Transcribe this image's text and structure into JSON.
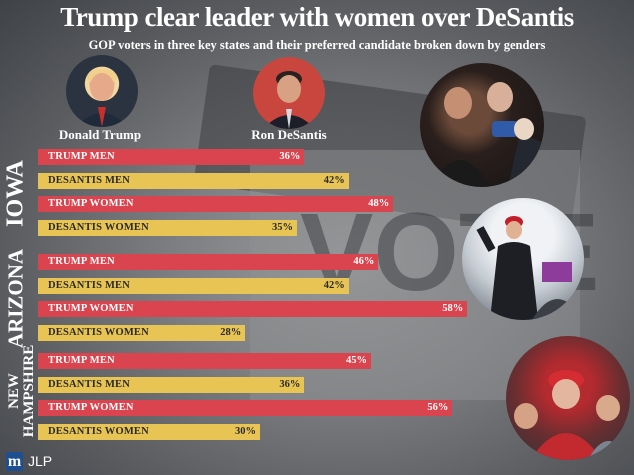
{
  "title": "Trump clear leader with women over DeSantis",
  "subtitle": "GOP voters in three key states and their preferred candidate broken down by genders",
  "candidates": [
    {
      "name": "Donald Trump"
    },
    {
      "name": "Ron DeSantis"
    }
  ],
  "footer": {
    "logo": "m",
    "credit": "JLP"
  },
  "colors": {
    "trump": "#d9444e",
    "desantis": "#e8c454"
  },
  "chart_data": {
    "type": "bar",
    "orientation": "horizontal",
    "unit": "%",
    "xlim": [
      0,
      80
    ],
    "groups": [
      {
        "state": "IOWA",
        "bars": [
          {
            "label": "TRUMP MEN",
            "value": 36,
            "display": "36%",
            "candidate": "trump"
          },
          {
            "label": "DESANTIS MEN",
            "value": 42,
            "display": "42%",
            "candidate": "desantis"
          },
          {
            "label": "TRUMP WOMEN",
            "value": 48,
            "display": "48%",
            "candidate": "trump"
          },
          {
            "label": "DESANTIS WOMEN",
            "value": 35,
            "display": "35%",
            "candidate": "desantis"
          }
        ]
      },
      {
        "state": "ARIZONA",
        "bars": [
          {
            "label": "TRUMP MEN",
            "value": 46,
            "display": "46%",
            "candidate": "trump"
          },
          {
            "label": "DESANTIS MEN",
            "value": 42,
            "display": "42%",
            "candidate": "desantis"
          },
          {
            "label": "TRUMP WOMEN",
            "value": 58,
            "display": "58%",
            "candidate": "trump"
          },
          {
            "label": "DESANTIS WOMEN",
            "value": 28,
            "display": "28%",
            "candidate": "desantis"
          }
        ]
      },
      {
        "state_lines": [
          "NEW",
          "HAMPSHIRE"
        ],
        "state": "NEW HAMPSHIRE",
        "bars": [
          {
            "label": "TRUMP MEN",
            "value": 45,
            "display": "45%",
            "candidate": "trump"
          },
          {
            "label": "DESANTIS MEN",
            "value": 36,
            "display": "36%",
            "candidate": "desantis"
          },
          {
            "label": "TRUMP WOMEN",
            "value": 56,
            "display": "56%",
            "candidate": "trump"
          },
          {
            "label": "DESANTIS WOMEN",
            "value": 30,
            "display": "30%",
            "candidate": "desantis"
          }
        ]
      }
    ]
  }
}
